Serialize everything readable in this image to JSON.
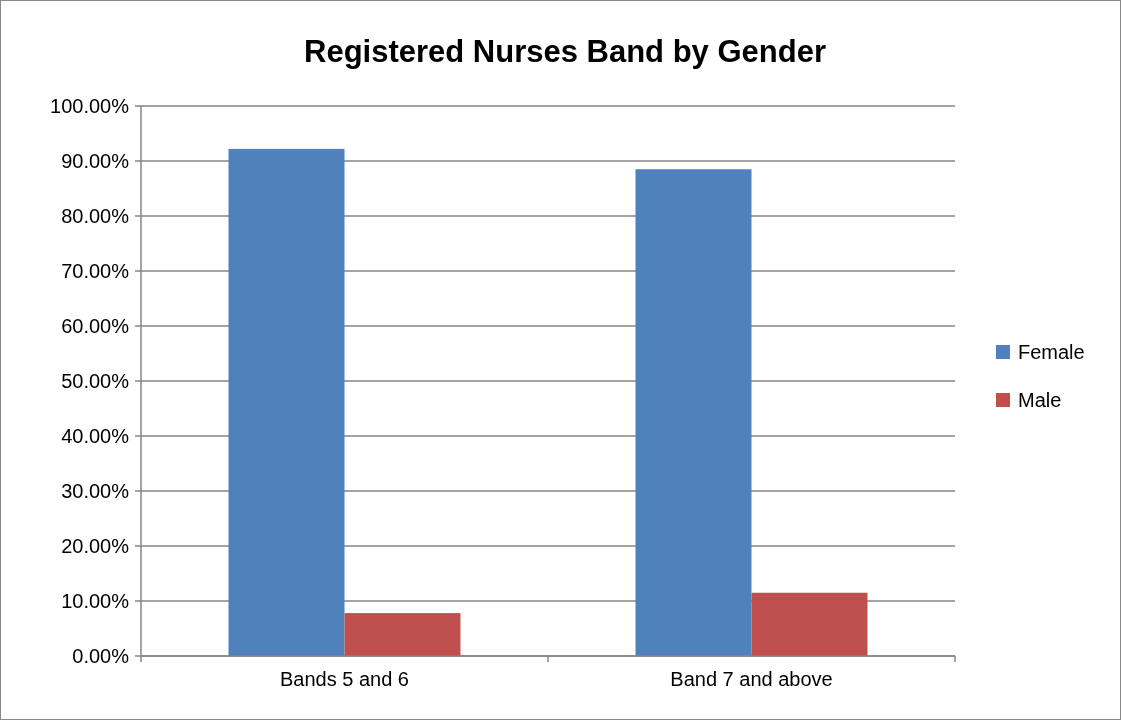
{
  "chart_data": {
    "type": "bar",
    "title": "Registered Nurses Band by Gender",
    "categories": [
      "Bands 5 and 6",
      "Band 7 and above"
    ],
    "series": [
      {
        "name": "Female",
        "color": "#4f81bd",
        "values": [
          92.2,
          88.5
        ]
      },
      {
        "name": "Male",
        "color": "#c0504d",
        "values": [
          7.8,
          11.5
        ]
      }
    ],
    "ylim": [
      0,
      100
    ],
    "yticks": [
      {
        "value": 0,
        "label": "0.00%"
      },
      {
        "value": 10,
        "label": "10.00%"
      },
      {
        "value": 20,
        "label": "20.00%"
      },
      {
        "value": 30,
        "label": "30.00%"
      },
      {
        "value": 40,
        "label": "40.00%"
      },
      {
        "value": 50,
        "label": "50.00%"
      },
      {
        "value": 60,
        "label": "60.00%"
      },
      {
        "value": 70,
        "label": "70.00%"
      },
      {
        "value": 80,
        "label": "80.00%"
      },
      {
        "value": 90,
        "label": "90.00%"
      },
      {
        "value": 100,
        "label": "100.00%"
      }
    ],
    "grid": "y",
    "legend": "right"
  }
}
